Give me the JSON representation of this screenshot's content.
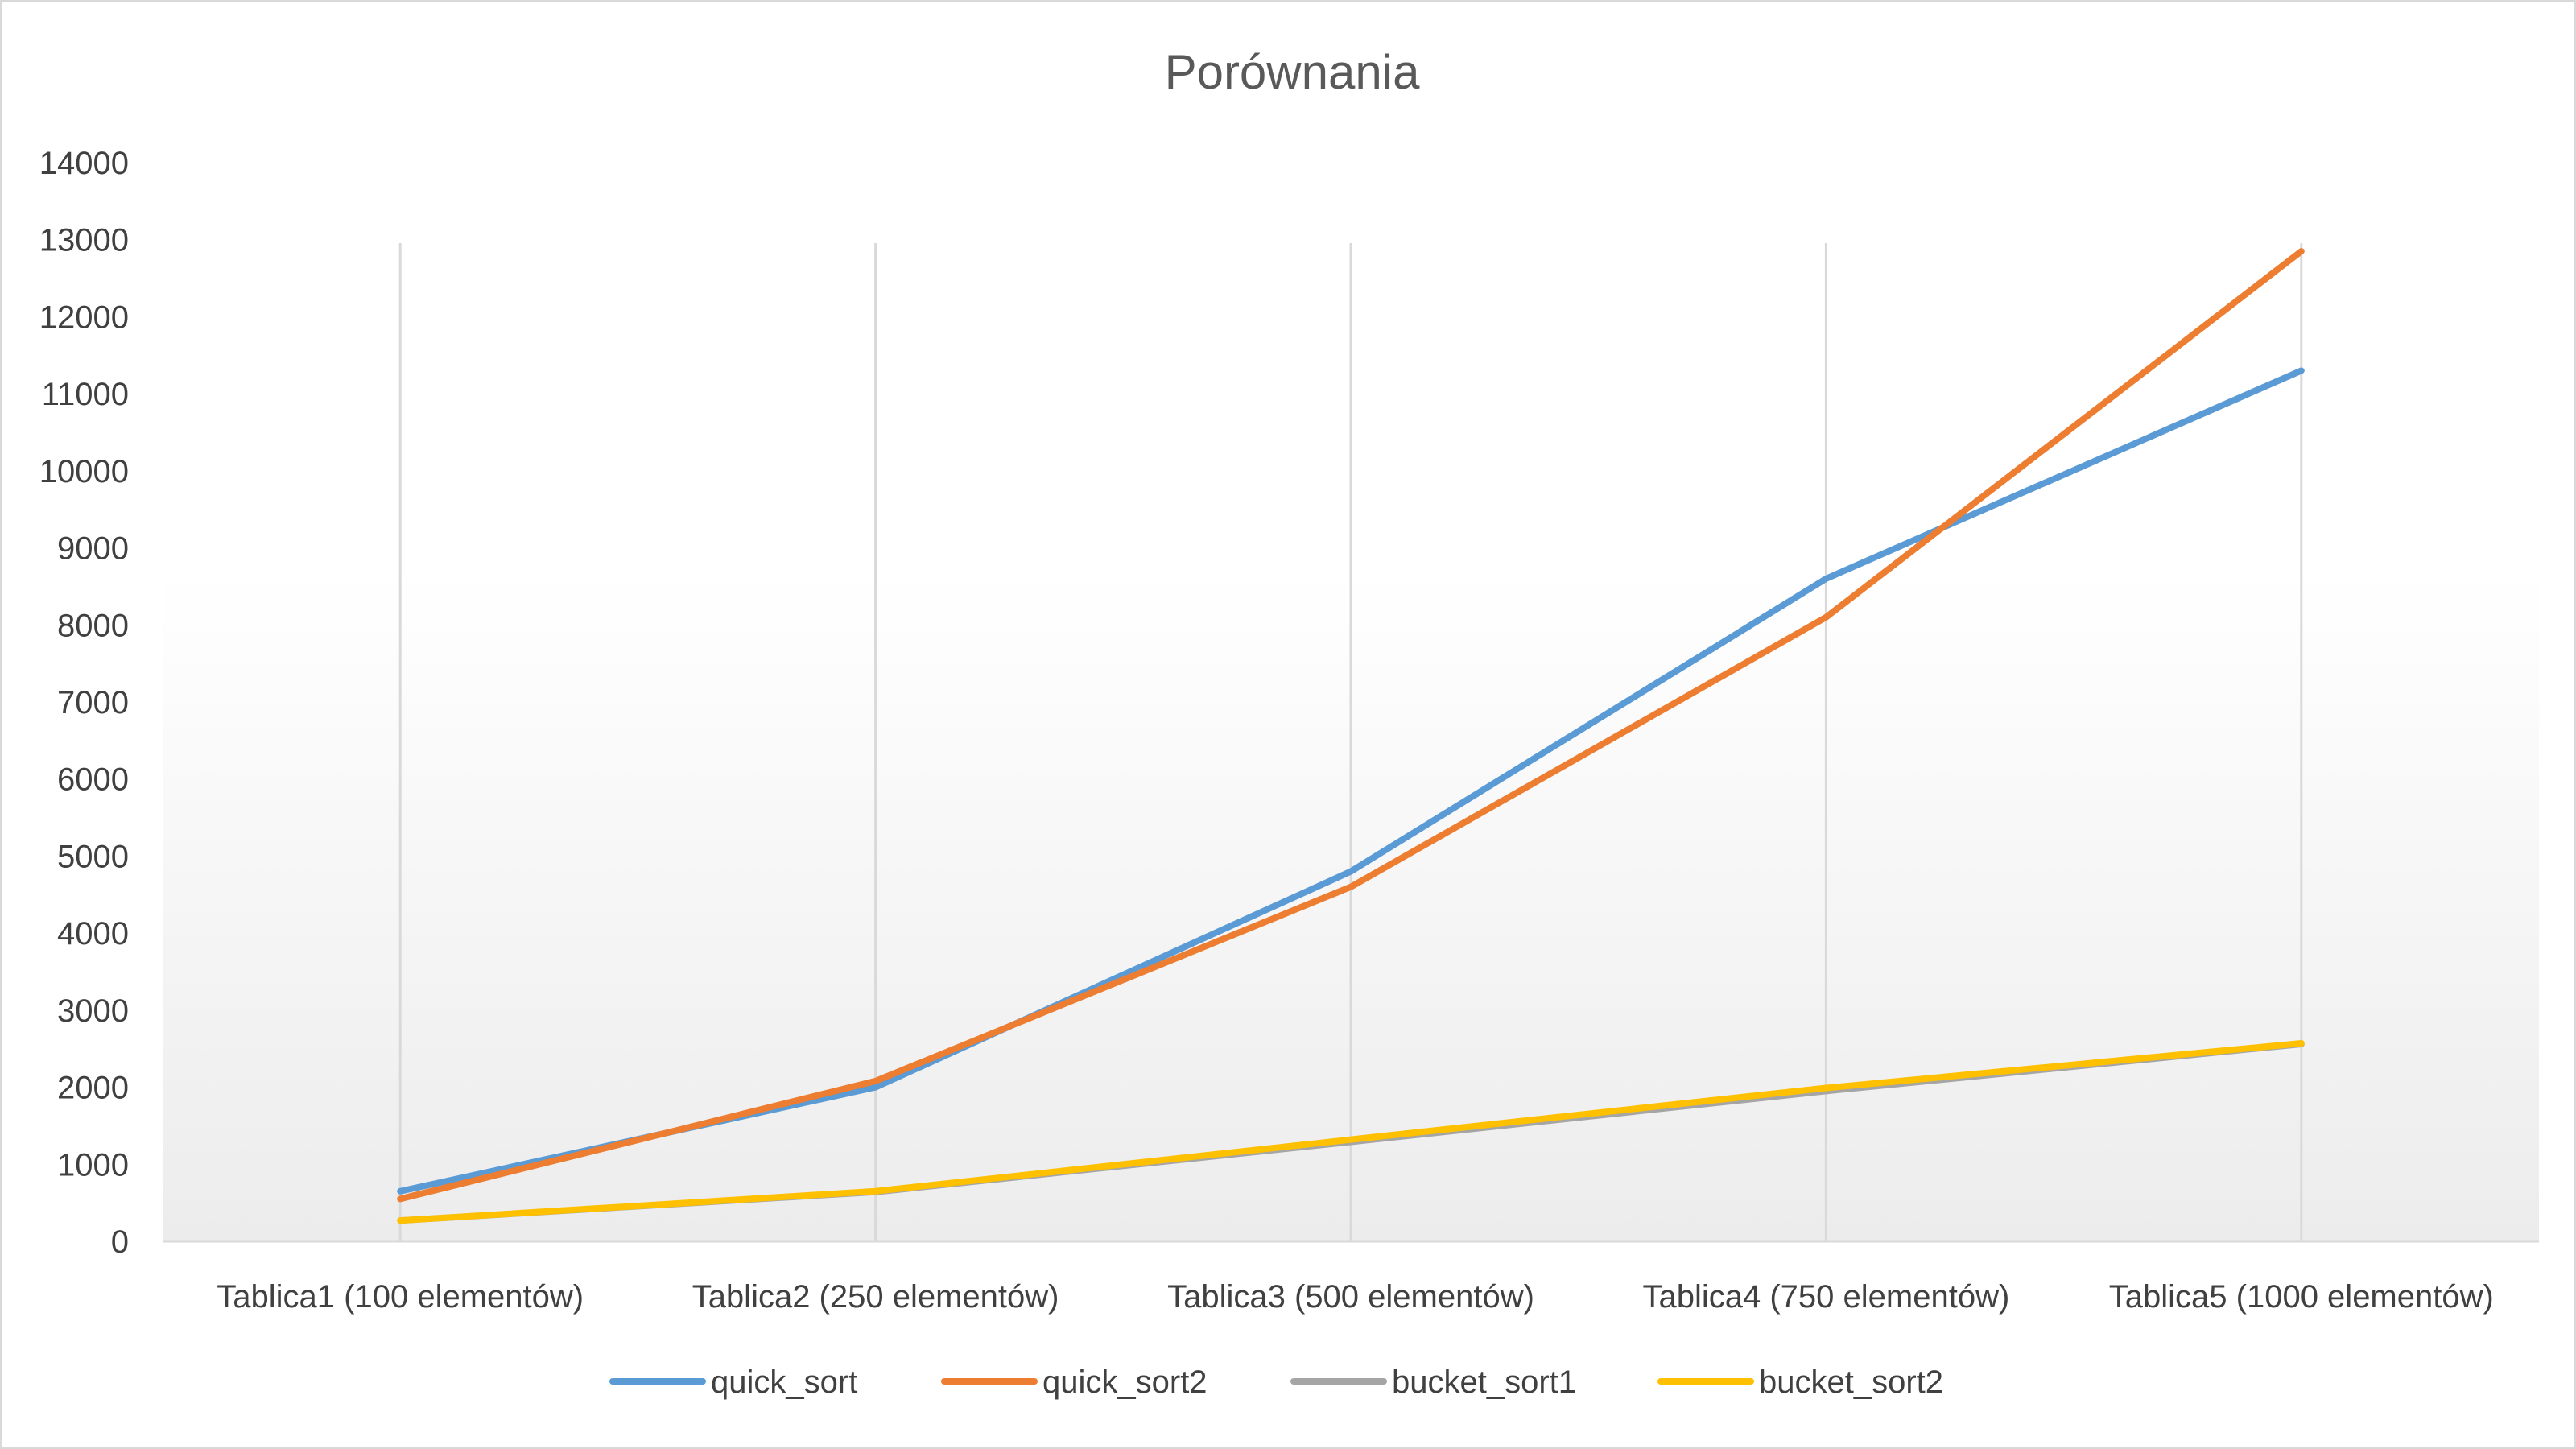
{
  "chart_data": {
    "type": "line",
    "title": "Porównania",
    "xlabel": "",
    "ylabel": "",
    "categories": [
      "Tablica1 (100 elementów)",
      "Tablica2 (250 elementów)",
      "Tablica3 (500 elementów)",
      "Tablica4 (750 elementów)",
      "Tablica5 (1000 elementów)"
    ],
    "ylim": [
      0,
      14000
    ],
    "yticks": [
      0,
      1000,
      2000,
      3000,
      4000,
      5000,
      6000,
      7000,
      8000,
      9000,
      10000,
      11000,
      12000,
      13000,
      14000
    ],
    "grid": "vertical category lines",
    "legend_position": "bottom",
    "series": [
      {
        "name": "quick_sort",
        "color": "#5B9BD5",
        "values": [
          650,
          2000,
          4800,
          8600,
          11300
        ]
      },
      {
        "name": "quick_sort2",
        "color": "#ED7D31",
        "values": [
          550,
          2080,
          4600,
          8100,
          12850
        ]
      },
      {
        "name": "bucket_sort1",
        "color": "#A5A5A5",
        "values": [
          270,
          640,
          1290,
          1950,
          2560
        ]
      },
      {
        "name": "bucket_sort2",
        "color": "#FFC000",
        "values": [
          270,
          650,
          1320,
          1990,
          2570
        ]
      }
    ]
  }
}
